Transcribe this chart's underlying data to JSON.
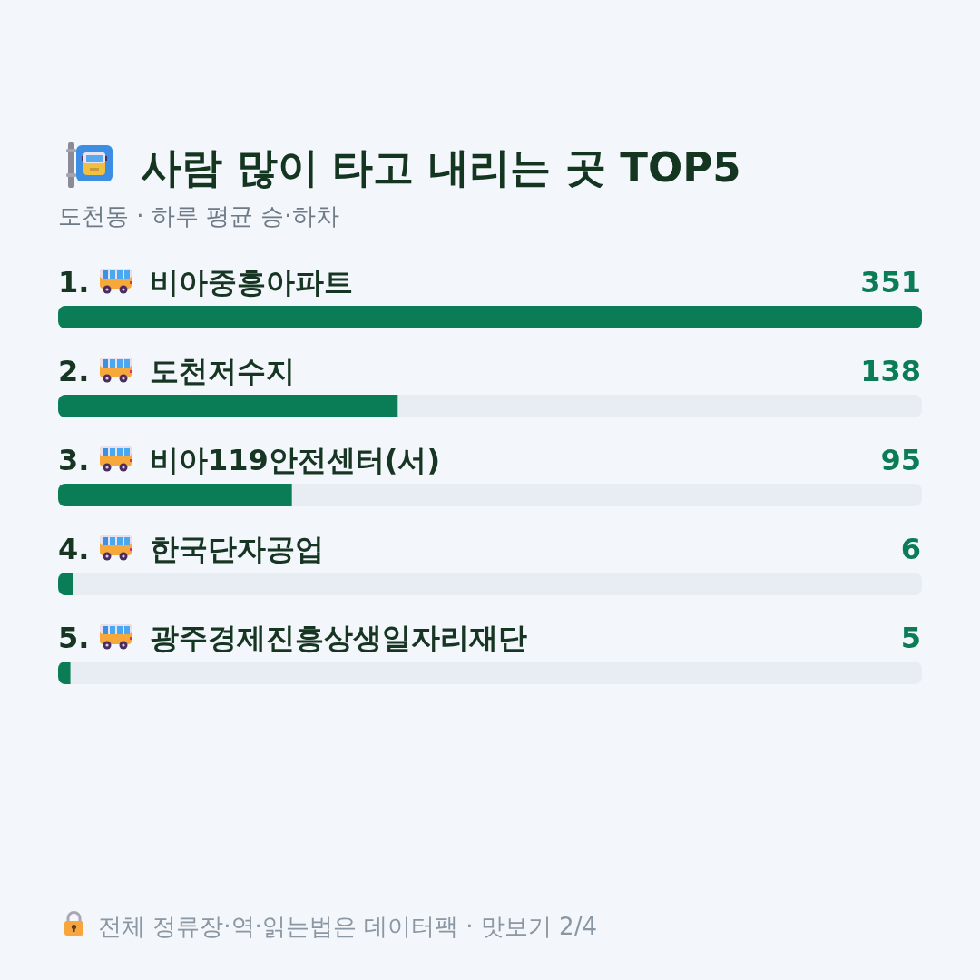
{
  "chart_data": {
    "type": "bar",
    "orientation": "horizontal",
    "title": "사람 많이 타고 내리는 곳 TOP5",
    "subtitle": "도천동 · 하루 평균 승·하차",
    "categories": [
      "1. 비아중흥아파트",
      "2. 도천저수지",
      "3. 비아119안전센터(서)",
      "4. 한국단자공업",
      "5. 광주경제진흥상생일자리재단"
    ],
    "values": [
      351,
      138,
      95,
      6,
      5
    ],
    "color": "#0b7d56",
    "data_labels": true,
    "tick_labels": "y",
    "annotations": [
      "전체 정류장·역·읽는법은 데이터팩 · 맛보기 2/4"
    ]
  }
}
